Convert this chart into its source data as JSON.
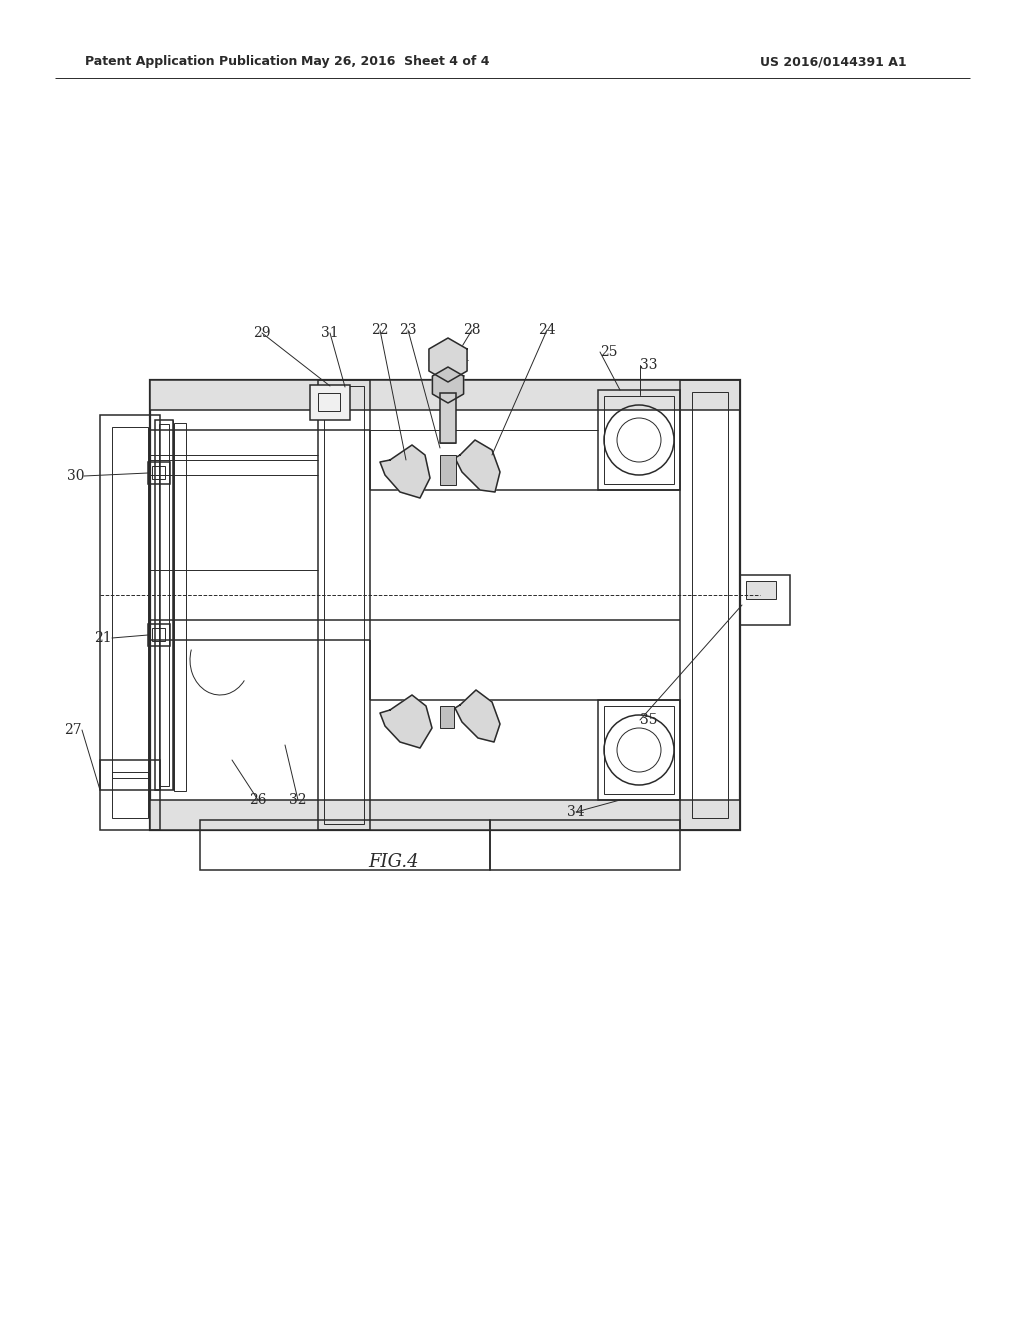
{
  "bg_color": "#ffffff",
  "line_color": "#2a2a2a",
  "header_left": "Patent Application Publication",
  "header_mid": "May 26, 2016  Sheet 4 of 4",
  "header_right": "US 2016/0144391 A1",
  "fig_label": "FIG.4",
  "lw_thin": 0.7,
  "lw_med": 1.1,
  "lw_thick": 1.6
}
